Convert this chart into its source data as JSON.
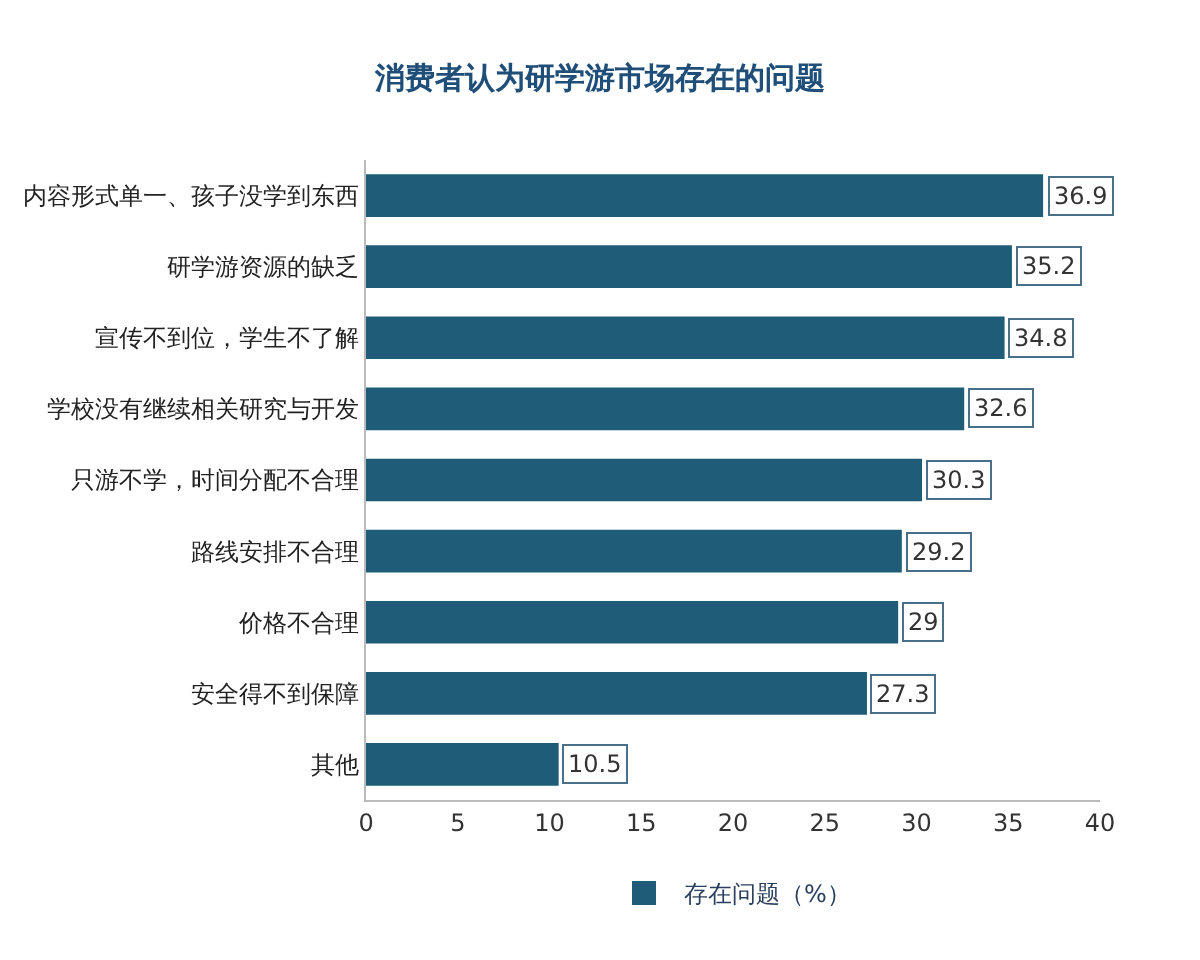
{
  "chart_data": {
    "type": "bar",
    "orientation": "horizontal",
    "title": "消费者认为研学游市场存在的问题",
    "categories": [
      "内容形式单一、孩子没学到东西",
      "研学游资源的缺乏",
      "宣传不到位，学生不了解",
      "学校没有继续相关研究与开发",
      "只游不学，时间分配不合理",
      "路线安排不合理",
      "价格不合理",
      "安全得不到保障",
      "其他"
    ],
    "series": [
      {
        "name": "存在问题（%）",
        "color": "#1f5c78",
        "values": [
          36.9,
          35.2,
          34.8,
          32.6,
          30.3,
          29.2,
          29,
          27.3,
          10.5
        ]
      }
    ],
    "xlim": [
      0,
      40
    ],
    "xticks": [
      0,
      5,
      10,
      15,
      20,
      25,
      30,
      35,
      40
    ],
    "data_labels": true,
    "legend": "bottom"
  }
}
